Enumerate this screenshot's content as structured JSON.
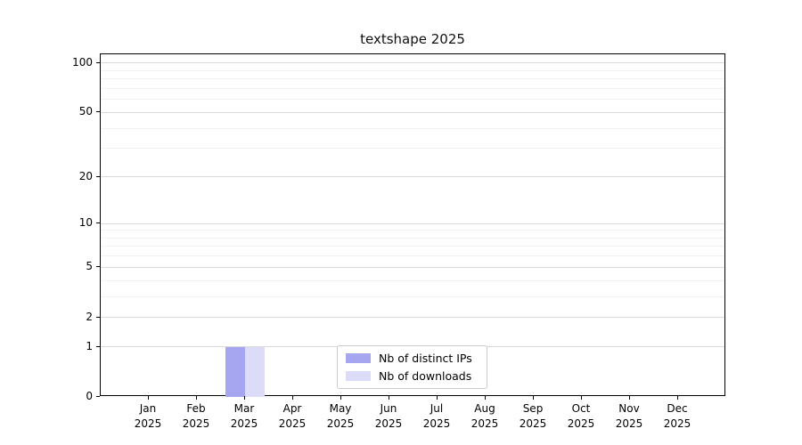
{
  "chart_data": {
    "type": "bar",
    "title": "textshape 2025",
    "categories": [
      "Jan",
      "Feb",
      "Mar",
      "Apr",
      "May",
      "Jun",
      "Jul",
      "Aug",
      "Sep",
      "Oct",
      "Nov",
      "Dec"
    ],
    "x_tick_year": "2025",
    "series": [
      {
        "name": "Nb of distinct IPs",
        "color": "#a6a6f0",
        "values": [
          0,
          0,
          1,
          0,
          0,
          0,
          0,
          0,
          0,
          0,
          0,
          0
        ]
      },
      {
        "name": "Nb of downloads",
        "color": "#dcdcf8",
        "values": [
          0,
          0,
          1,
          0,
          0,
          0,
          0,
          0,
          0,
          0,
          0,
          0
        ]
      }
    ],
    "xlabel": "",
    "ylabel": "",
    "y_scale": "log10(value+1)",
    "y_major_ticks": [
      0,
      1,
      2,
      5,
      10,
      20,
      50,
      100
    ],
    "y_minor_ticks": [
      3,
      4,
      6,
      7,
      8,
      9,
      30,
      40,
      60,
      70,
      80,
      90
    ],
    "ylim": [
      0,
      113
    ],
    "grid": "horizontal",
    "legend_position": "lower center",
    "colors": {
      "axis": "#000000",
      "grid_major": "#d9d9d9",
      "grid_minor": "#f1f1f1",
      "background": "#ffffff"
    }
  }
}
